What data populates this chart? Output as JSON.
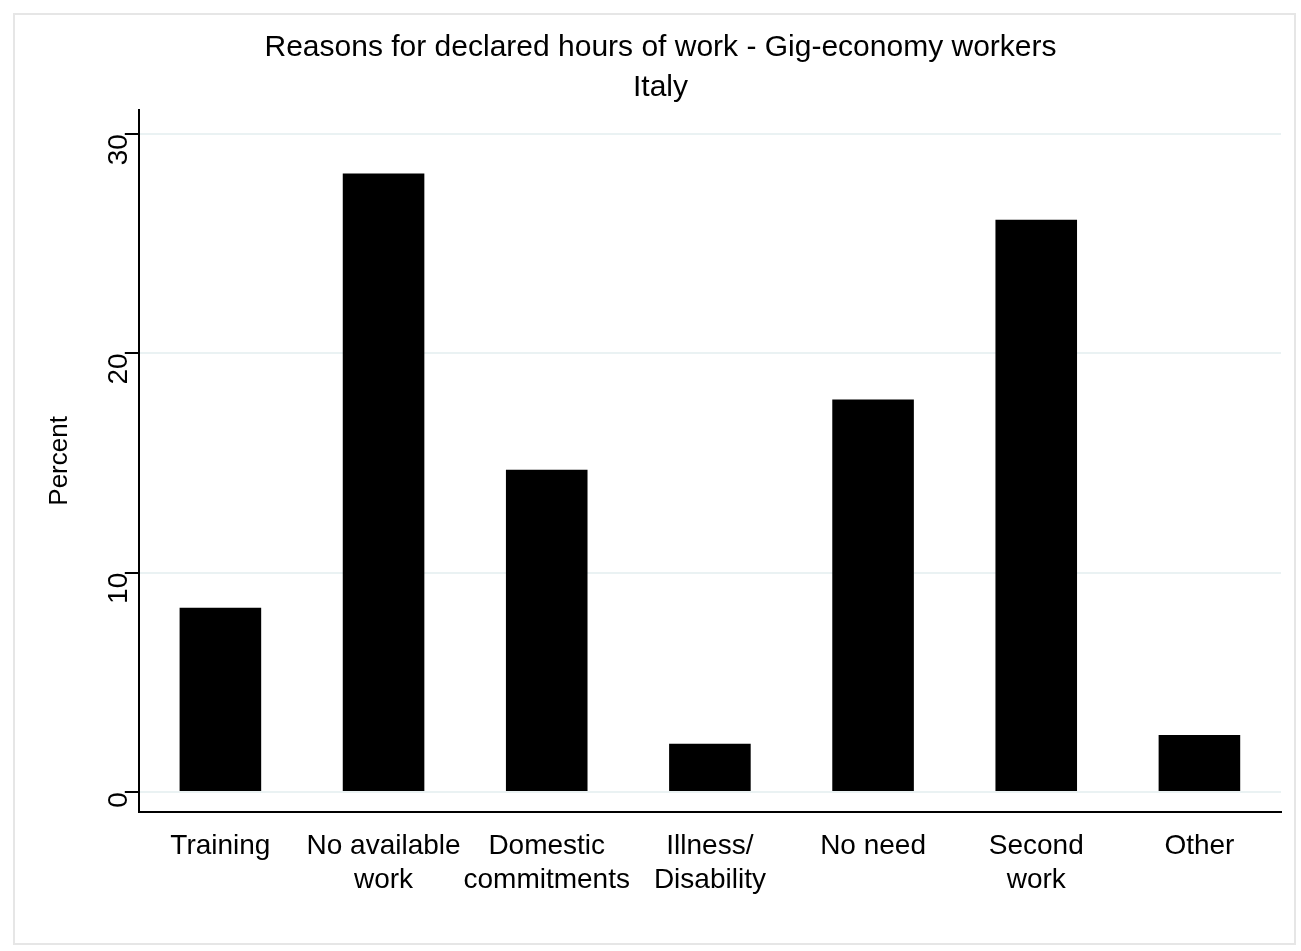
{
  "chart_data": {
    "type": "bar",
    "title": "Reasons for declared hours of work - Gig-economy workers",
    "subtitle": "Italy",
    "ylabel": "Percent",
    "categories": [
      "Training",
      "No available\nwork",
      "Domestic\ncommitments",
      "Illness/\nDisability",
      "No need",
      "Second\nwork",
      "Other"
    ],
    "values": [
      8.4,
      28.2,
      14.7,
      2.2,
      17.9,
      26.1,
      2.6
    ],
    "color": "#000000",
    "ylim": [
      -0.9,
      31.1
    ],
    "yticks": [
      0,
      10,
      20,
      30
    ],
    "grid": "y",
    "legend": false
  }
}
